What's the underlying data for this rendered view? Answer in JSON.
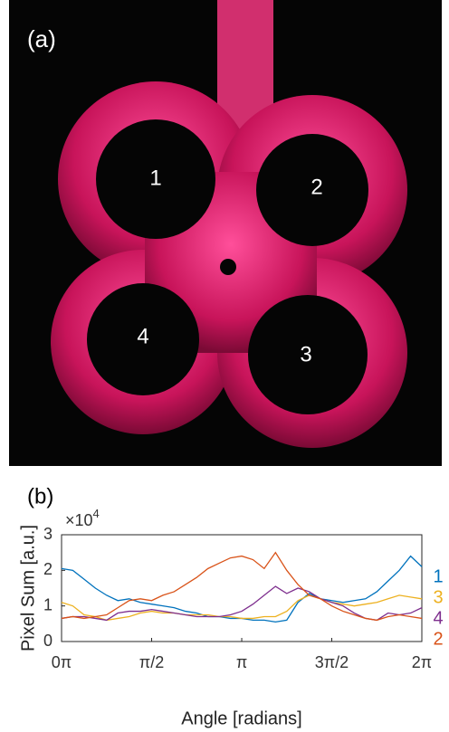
{
  "photo": {
    "panel_label": "(a)",
    "region_labels": [
      "1",
      "2",
      "3",
      "4"
    ]
  },
  "chart_data": {
    "type": "line",
    "panel_label": "(b)",
    "x_label": "Angle [radians]",
    "y_label": "Pixel Sum [a.u.]",
    "y_multiplier": {
      "base": "×10",
      "exponent": "4"
    },
    "xlim": [
      0,
      6.283
    ],
    "ylim": [
      0,
      3
    ],
    "xticks": [
      {
        "value": 0,
        "label": "0π"
      },
      {
        "value": 1.571,
        "label": "π/2"
      },
      {
        "value": 3.142,
        "label": "π"
      },
      {
        "value": 4.712,
        "label": "3π/2"
      },
      {
        "value": 6.283,
        "label": "2π"
      }
    ],
    "yticks": [
      0,
      1,
      2,
      3
    ],
    "x": [
      0,
      0.196,
      0.393,
      0.589,
      0.785,
      0.982,
      1.178,
      1.374,
      1.571,
      1.767,
      1.963,
      2.16,
      2.356,
      2.553,
      2.749,
      2.945,
      3.142,
      3.338,
      3.534,
      3.731,
      3.927,
      4.123,
      4.32,
      4.516,
      4.712,
      4.909,
      5.105,
      5.301,
      5.498,
      5.694,
      5.89,
      6.087,
      6.283
    ],
    "series": [
      {
        "name": "1",
        "color": "#0072bd",
        "values": [
          2.05,
          2.0,
          1.75,
          1.5,
          1.3,
          1.15,
          1.2,
          1.1,
          1.05,
          1.0,
          0.95,
          0.85,
          0.8,
          0.7,
          0.7,
          0.65,
          0.65,
          0.6,
          0.6,
          0.55,
          0.6,
          1.1,
          1.35,
          1.2,
          1.15,
          1.1,
          1.15,
          1.2,
          1.4,
          1.7,
          2.0,
          2.4,
          2.1
        ]
      },
      {
        "name": "3",
        "color": "#edb120",
        "values": [
          1.1,
          1.0,
          0.75,
          0.7,
          0.6,
          0.65,
          0.7,
          0.8,
          0.85,
          0.8,
          0.8,
          0.75,
          0.75,
          0.75,
          0.7,
          0.7,
          0.65,
          0.65,
          0.7,
          0.7,
          0.85,
          1.15,
          1.3,
          1.2,
          1.1,
          1.05,
          1.0,
          1.05,
          1.1,
          1.2,
          1.3,
          1.25,
          1.2
        ]
      },
      {
        "name": "4",
        "color": "#7e2f8e",
        "values": [
          0.65,
          0.7,
          0.7,
          0.65,
          0.6,
          0.8,
          0.85,
          0.85,
          0.9,
          0.85,
          0.8,
          0.75,
          0.7,
          0.7,
          0.7,
          0.75,
          0.85,
          1.05,
          1.3,
          1.55,
          1.35,
          1.5,
          1.4,
          1.2,
          1.1,
          1.0,
          0.8,
          0.65,
          0.6,
          0.8,
          0.75,
          0.8,
          0.95
        ]
      },
      {
        "name": "2",
        "color": "#d95319",
        "values": [
          0.65,
          0.7,
          0.65,
          0.7,
          0.75,
          0.95,
          1.15,
          1.2,
          1.15,
          1.3,
          1.4,
          1.6,
          1.8,
          2.05,
          2.2,
          2.35,
          2.4,
          2.3,
          2.05,
          2.5,
          2.0,
          1.6,
          1.3,
          1.2,
          1.0,
          0.85,
          0.75,
          0.65,
          0.6,
          0.7,
          0.75,
          0.7,
          0.65
        ]
      }
    ]
  }
}
